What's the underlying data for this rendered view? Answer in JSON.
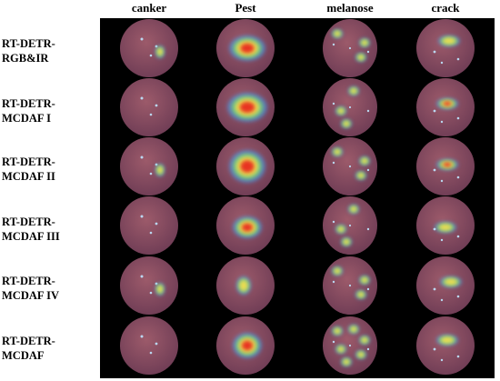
{
  "figure": {
    "columns": [
      "canker",
      "Pest",
      "melanose",
      "crack"
    ],
    "rows": [
      {
        "label_line1": "RT-DETR-",
        "label_line2": "RGB&IR"
      },
      {
        "label_line1": "RT-DETR-",
        "label_line2": "MCDAF I"
      },
      {
        "label_line1": "RT-DETR-",
        "label_line2": "MCDAF II"
      },
      {
        "label_line1": "RT-DETR-",
        "label_line2": "MCDAF III"
      },
      {
        "label_line1": "RT-DETR-",
        "label_line2": "MCDAF IV"
      },
      {
        "label_line1": "RT-DETR-",
        "label_line2": "MCDAF"
      }
    ],
    "colors": {
      "background": "#000000",
      "fruit_base": "#9c5a6a",
      "fruit_dark": "#6e3c55",
      "heat_low": "#3aa0ff",
      "heat_mid": "#ffe14a",
      "heat_high": "#e8241c"
    }
  }
}
